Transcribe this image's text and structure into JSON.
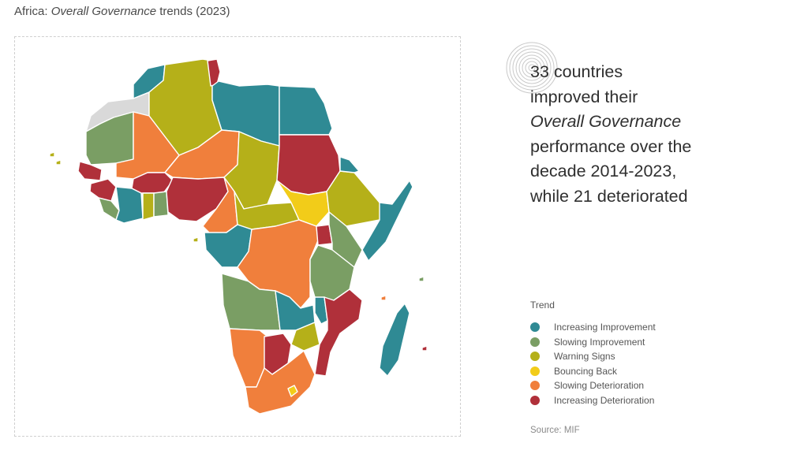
{
  "title": {
    "prefix": "Africa: ",
    "emphasis": "Overall Governance",
    "suffix": " trends (2023)"
  },
  "headline": {
    "line1": "33 countries",
    "line2": "improved their",
    "line3_emphasis": "Overall Governance",
    "line4": "performance over the",
    "line5": "decade 2014-2023,",
    "line6": "while 21 deteriorated"
  },
  "legend": {
    "title": "Trend",
    "items": [
      {
        "label": "Increasing Improvement",
        "color": "#2f8a94"
      },
      {
        "label": "Slowing Improvement",
        "color": "#7a9e64"
      },
      {
        "label": "Warning Signs",
        "color": "#b5b019"
      },
      {
        "label": "Bouncing Back",
        "color": "#f2cc19"
      },
      {
        "label": "Slowing Deterioration",
        "color": "#f07f3c"
      },
      {
        "label": "Increasing Deterioration",
        "color": "#b0303a"
      }
    ]
  },
  "source": "Source: MIF",
  "colors": {
    "increasing_improvement": "#2f8a94",
    "slowing_improvement": "#7a9e64",
    "warning_signs": "#b5b019",
    "bouncing_back": "#f2cc19",
    "slowing_deterioration": "#f07f3c",
    "increasing_deterioration": "#b0303a",
    "no_data": "#d9d9d9"
  }
}
